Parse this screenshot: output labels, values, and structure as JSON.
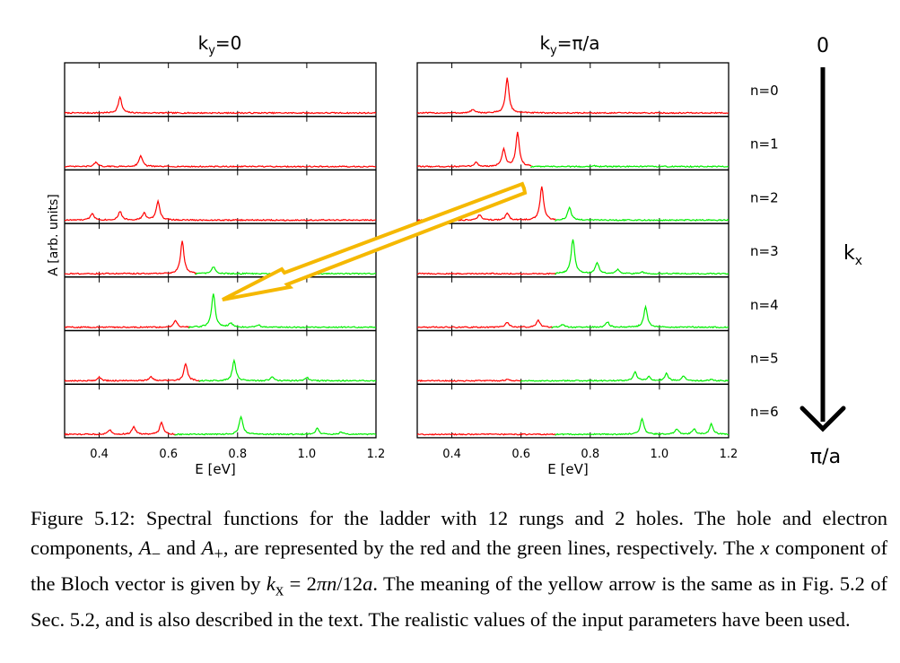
{
  "figure": {
    "panels": [
      {
        "title": "k",
        "title_sub": "y",
        "title_tail": "=0",
        "xlabel": "E [eV]"
      },
      {
        "title": "k",
        "title_sub": "y",
        "title_tail": "=π/a",
        "xlabel": "E [eV]"
      }
    ],
    "ylabel": "A [arb. units]",
    "row_labels": [
      "n=0",
      "n=1",
      "n=2",
      "n=3",
      "n=4",
      "n=5",
      "n=6"
    ],
    "arrow_top_label": "0",
    "arrow_mid_label": "k",
    "arrow_mid_sub": "x",
    "arrow_bottom_label": "π/a",
    "colors": {
      "hole": "#ff0000",
      "electron": "#00ee00",
      "yellow_arrow": "#f5b800",
      "axis": "#000000"
    }
  },
  "chart_data": {
    "type": "line",
    "xlabel": "E [eV]",
    "ylabel": "A [arb. units]",
    "xlim": [
      0.3,
      1.2
    ],
    "x_ticks": [
      "0.4",
      "0.6",
      "0.8",
      "1.0",
      "1.2"
    ],
    "panels": [
      {
        "title": "ky=0",
        "rows": [
          {
            "label": "n=0",
            "hole_peaks": [
              [
                0.46,
                0.45
              ]
            ],
            "electron_peaks": []
          },
          {
            "label": "n=1",
            "hole_peaks": [
              [
                0.39,
                0.12
              ],
              [
                0.52,
                0.32
              ]
            ],
            "electron_peaks": []
          },
          {
            "label": "n=2",
            "hole_peaks": [
              [
                0.38,
                0.2
              ],
              [
                0.46,
                0.25
              ],
              [
                0.53,
                0.2
              ],
              [
                0.57,
                0.55
              ]
            ],
            "electron_peaks": []
          },
          {
            "label": "n=3",
            "hole_peaks": [
              [
                0.64,
                0.93
              ]
            ],
            "electron_peaks": [
              [
                0.73,
                0.2
              ]
            ]
          },
          {
            "label": "n=4",
            "hole_peaks": [
              [
                0.62,
                0.2
              ]
            ],
            "electron_peaks": [
              [
                0.73,
                0.98
              ],
              [
                0.78,
                0.12
              ],
              [
                0.86,
                0.07
              ]
            ]
          },
          {
            "label": "n=5",
            "hole_peaks": [
              [
                0.4,
                0.1
              ],
              [
                0.55,
                0.12
              ],
              [
                0.65,
                0.5
              ]
            ],
            "electron_peaks": [
              [
                0.79,
                0.58
              ],
              [
                0.9,
                0.1
              ],
              [
                1.0,
                0.1
              ]
            ]
          },
          {
            "label": "n=6",
            "hole_peaks": [
              [
                0.43,
                0.13
              ],
              [
                0.5,
                0.22
              ],
              [
                0.58,
                0.35
              ]
            ],
            "electron_peaks": [
              [
                0.81,
                0.52
              ],
              [
                1.03,
                0.17
              ],
              [
                1.1,
                0.07
              ]
            ]
          }
        ]
      },
      {
        "title": "ky=π/a",
        "rows": [
          {
            "label": "n=0",
            "hole_peaks": [
              [
                0.46,
                0.1
              ],
              [
                0.56,
                1.0
              ]
            ],
            "electron_peaks": []
          },
          {
            "label": "n=1",
            "hole_peaks": [
              [
                0.47,
                0.12
              ],
              [
                0.55,
                0.5
              ],
              [
                0.59,
                0.98
              ]
            ],
            "electron_peaks": [
              [
                0.81,
                0.03
              ]
            ]
          },
          {
            "label": "n=2",
            "hole_peaks": [
              [
                0.48,
                0.15
              ],
              [
                0.56,
                0.2
              ],
              [
                0.66,
                0.98
              ]
            ],
            "electron_peaks": [
              [
                0.74,
                0.37
              ]
            ]
          },
          {
            "label": "n=3",
            "hole_peaks": [],
            "electron_peaks": [
              [
                0.75,
                1.0
              ],
              [
                0.82,
                0.32
              ],
              [
                0.88,
                0.12
              ],
              [
                0.95,
                0.04
              ]
            ]
          },
          {
            "label": "n=4",
            "hole_peaks": [
              [
                0.56,
                0.15
              ],
              [
                0.65,
                0.2
              ]
            ],
            "electron_peaks": [
              [
                0.72,
                0.07
              ],
              [
                0.85,
                0.15
              ],
              [
                0.96,
                0.58
              ]
            ]
          },
          {
            "label": "n=5",
            "hole_peaks": [
              [
                0.56,
                0.05
              ]
            ],
            "electron_peaks": [
              [
                0.93,
                0.25
              ],
              [
                0.97,
                0.12
              ],
              [
                1.02,
                0.2
              ],
              [
                1.07,
                0.14
              ],
              [
                1.15,
                0.05
              ]
            ]
          },
          {
            "label": "n=6",
            "hole_peaks": [],
            "electron_peaks": [
              [
                0.95,
                0.45
              ],
              [
                1.05,
                0.15
              ],
              [
                1.1,
                0.15
              ],
              [
                1.15,
                0.3
              ]
            ]
          }
        ]
      }
    ]
  },
  "caption": {
    "label": "Figure 5.12:",
    "s1": "Spectral functions for the ladder with 12 rungs and 2 holes.  The hole and electron components,",
    "am": "A",
    "am_sub": "−",
    "and": "and",
    "ap": "A",
    "ap_sub": "+",
    "s2": ", are represented by the red and the green lines, respectively.  The",
    "x": "x",
    "s3": "component of the Bloch vector is given by",
    "kx": "k",
    "kx_sub": "x",
    "eq": "= 2",
    "pi": "πn",
    "over": "/12",
    "a": "a",
    "s4": ".  The meaning of the yellow arrow is the same as in Fig. 5.2 of Sec. 5.2, and is also described in the text. The realistic values of the input parameters have been used."
  }
}
